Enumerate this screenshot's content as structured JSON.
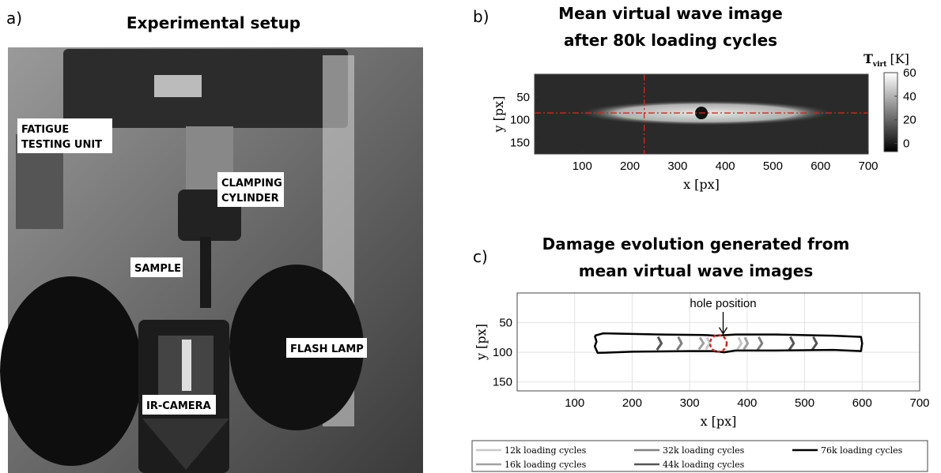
{
  "photo_panel": {
    "label": "a)",
    "title": "Experimental setup",
    "annotations": [
      [
        "FATIGUE",
        "TESTING UNIT"
      ],
      [
        "CLAMPING",
        "CYLINDER"
      ],
      [
        "SAMPLE"
      ],
      [
        "FLASH LAMP"
      ],
      [
        "IR-CAMERA"
      ]
    ]
  },
  "chart_data": [
    {
      "type": "heatmap",
      "label": "b)",
      "title": [
        "Mean virtual wave image",
        "after 80k loading cycles"
      ],
      "x_label": "x [px]",
      "y_label": "y [px]",
      "xlim": [
        0,
        700
      ],
      "xticks": [
        100,
        200,
        300,
        400,
        500,
        600,
        700
      ],
      "ylim": [
        0,
        175
      ],
      "y_reversed": true,
      "yticks": [
        50,
        100,
        150
      ],
      "colorbar": {
        "symbol": "T",
        "subscript": "virt",
        "unit": "[K]",
        "lim": [
          -7,
          60
        ],
        "ticks": [
          0,
          20,
          40,
          60
        ]
      },
      "crosshair": {
        "x": 230,
        "y": 85,
        "color": "#e02020"
      },
      "hole": {
        "x": 350,
        "y": 85
      }
    },
    {
      "type": "line",
      "label": "c)",
      "title": [
        "Damage evolution generated from",
        "mean virtual wave images"
      ],
      "x_label": "x [px]",
      "y_label": "y [px]",
      "xlim": [
        0,
        700
      ],
      "xticks": [
        100,
        200,
        300,
        400,
        500,
        600,
        700
      ],
      "ylim": [
        0,
        165
      ],
      "y_reversed": true,
      "yticks": [
        50,
        100,
        150
      ],
      "grid": true,
      "annotation": {
        "text": "hole position",
        "x": 350,
        "y": 70
      },
      "hole_marker": {
        "x": 350,
        "y": 85,
        "r": 14,
        "color": "#e02020"
      },
      "series": [
        {
          "name": "12k loading cycles",
          "color": "#c8c8c8",
          "x": [
            330,
            335,
            328,
            null,
            385,
            390,
            383
          ],
          "values": [
            75,
            85,
            95,
            null,
            75,
            85,
            95
          ]
        },
        {
          "name": "16k loading cycles",
          "color": "#a0a0a0",
          "x": [
            318,
            324,
            316,
            null,
            396,
            401,
            394
          ],
          "values": [
            75,
            85,
            95,
            null,
            75,
            85,
            95
          ]
        },
        {
          "name": "32k loading cycles",
          "color": "#808080",
          "x": [
            280,
            286,
            278,
            null,
            420,
            426,
            418
          ],
          "values": [
            74,
            85,
            96,
            null,
            74,
            85,
            96
          ]
        },
        {
          "name": "44k loading cycles",
          "color": "#555555",
          "x": [
            245,
            251,
            243,
            null,
            475,
            481,
            473,
            null,
            515,
            521,
            513
          ],
          "values": [
            74,
            85,
            96,
            null,
            74,
            85,
            96,
            null,
            74,
            85,
            96
          ]
        },
        {
          "name": "76k loading cycles",
          "color": "#000000",
          "x": [
            135,
            150,
            250,
            330,
            345,
            380,
            450,
            550,
            598,
            600,
            598,
            550,
            450,
            380,
            360,
            340,
            300,
            200,
            140,
            135,
            138,
            135
          ],
          "values": [
            72,
            68,
            70,
            71,
            72,
            70,
            70,
            72,
            74,
            85,
            98,
            96,
            97,
            97,
            100,
            98,
            98,
            99,
            101,
            90,
            82,
            72
          ]
        }
      ]
    }
  ]
}
